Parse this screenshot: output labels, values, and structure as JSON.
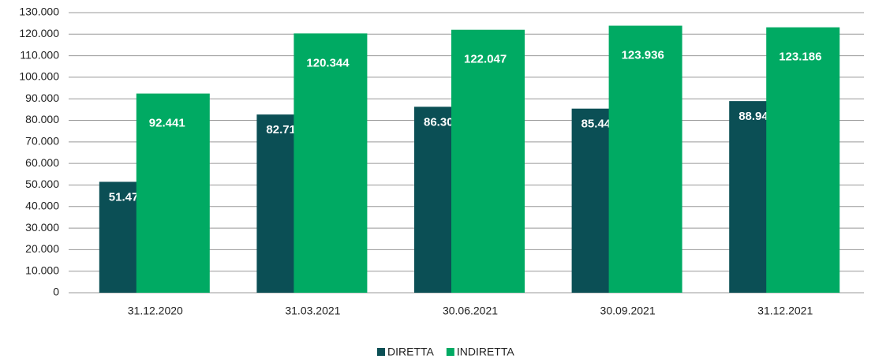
{
  "chart_data": {
    "type": "bar",
    "categories": [
      "31.12.2020",
      "31.03.2021",
      "30.06.2021",
      "30.09.2021",
      "31.12.2021"
    ],
    "series": [
      {
        "name": "DIRETTA",
        "color": "#0b4f55",
        "values": [
          51472,
          82710,
          86305,
          85443,
          88941
        ],
        "value_labels": [
          "51.472",
          "82.710",
          "86.305",
          "85.443",
          "88.941"
        ]
      },
      {
        "name": "INDIRETTA",
        "color": "#00aa63",
        "values": [
          92441,
          120344,
          122047,
          123936,
          123186
        ],
        "value_labels": [
          "92.441",
          "120.344",
          "122.047",
          "123.936",
          "123.186"
        ]
      }
    ],
    "ylim": [
      0,
      130000
    ],
    "yticks": [
      0,
      {
        "value": 10000,
        "label": "10.000"
      },
      {
        "value": 20000,
        "label": "20.000"
      },
      {
        "value": 30000,
        "label": "30.000"
      },
      {
        "value": 40000,
        "label": "40.000"
      },
      {
        "value": 50000,
        "label": "50.000"
      },
      {
        "value": 60000,
        "label": "60.000"
      },
      {
        "value": 70000,
        "label": "70.000"
      },
      {
        "value": 80000,
        "label": "80.000"
      },
      {
        "value": 90000,
        "label": "90.000"
      },
      {
        "value": 100000,
        "label": "100.000"
      },
      {
        "value": 110000,
        "label": "110.000"
      },
      {
        "value": 120000,
        "label": "120.000"
      },
      {
        "value": 130000,
        "label": "130.000"
      }
    ],
    "grid": true,
    "legend": "bottom"
  }
}
